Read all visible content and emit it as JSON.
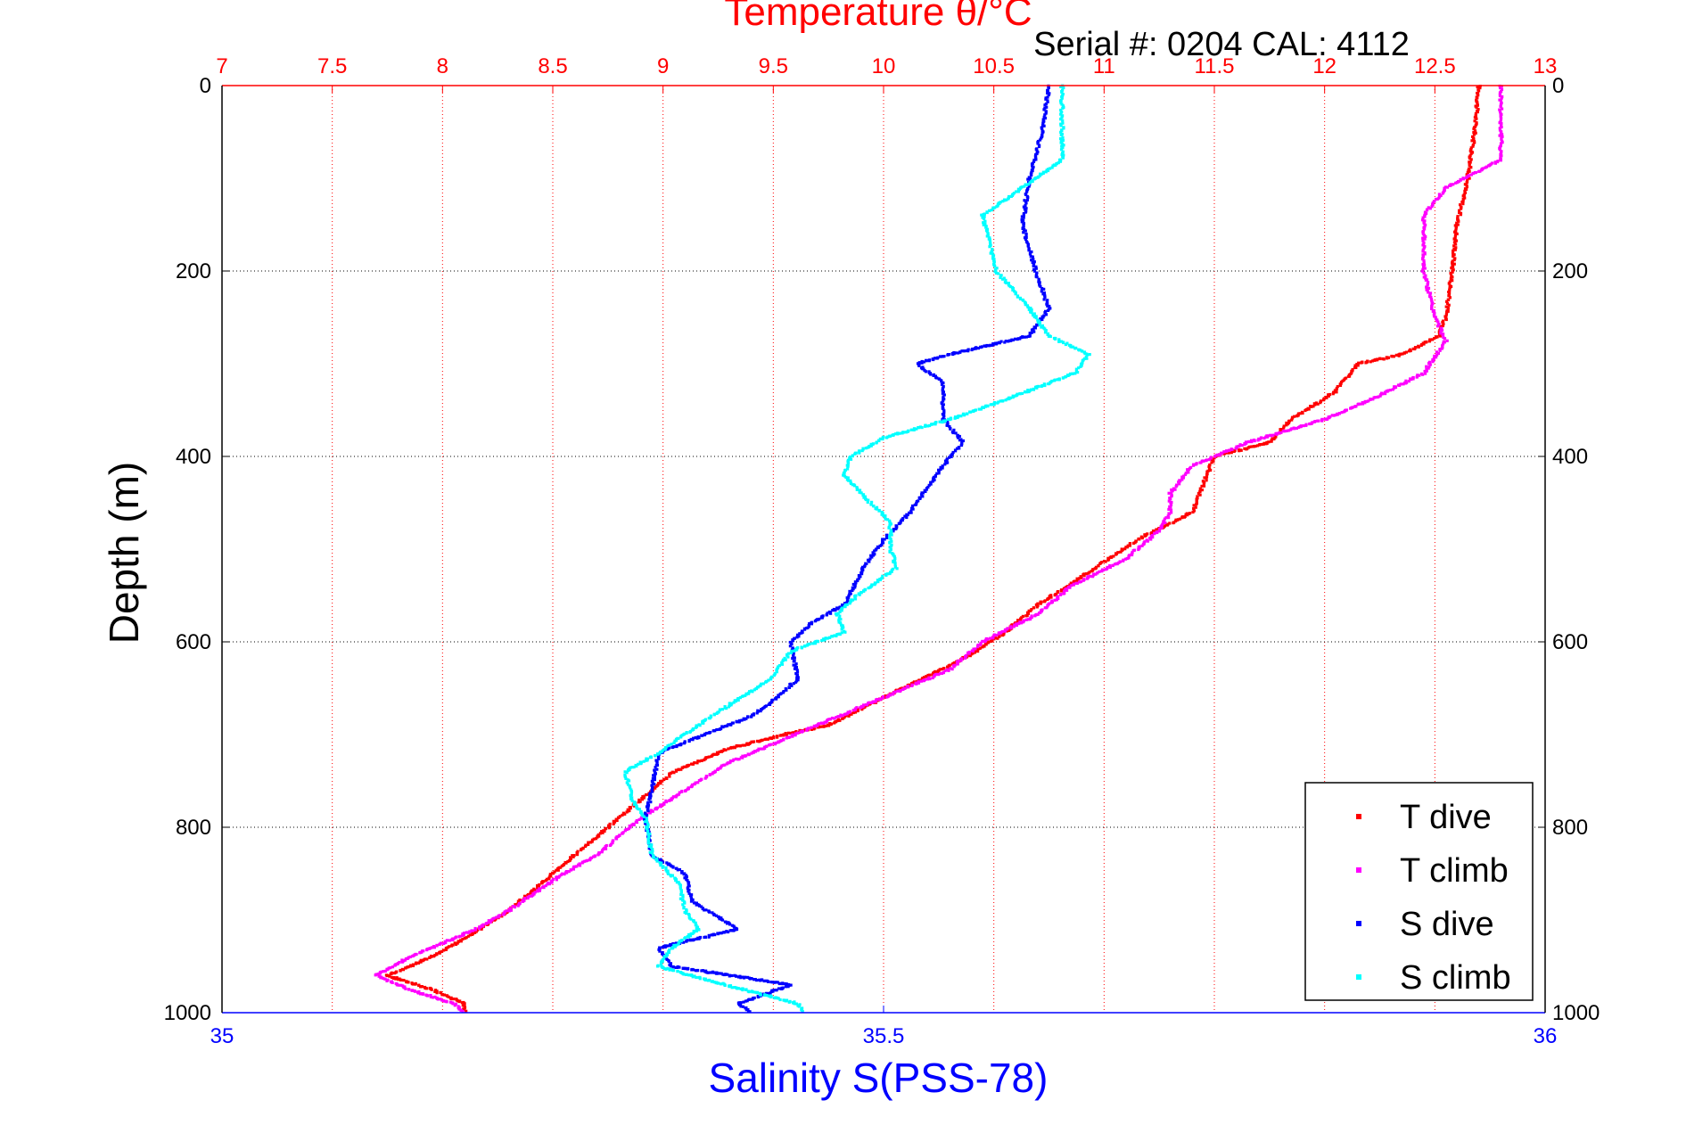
{
  "chart_data": {
    "type": "scatter",
    "title": "Temperature θ/°C",
    "subtitle": "Serial #: 0204  CAL: 4112",
    "xlabel_bottom": "Salinity S(PSS-78)",
    "ylabel": "Depth (m)",
    "temp_axis": {
      "range": [
        7,
        13
      ],
      "ticks": [
        "7",
        "7.5",
        "8",
        "8.5",
        "9",
        "9.5",
        "10",
        "10.5",
        "11",
        "11.5",
        "12",
        "12.5",
        "13"
      ],
      "color": "#ff0000"
    },
    "sal_axis": {
      "range": [
        35,
        36
      ],
      "ticks": [
        "35",
        "35.5",
        "36"
      ],
      "color": "#0000ff"
    },
    "depth_axis": {
      "range": [
        0,
        1000
      ],
      "reversed": true,
      "ticks": [
        "0",
        "200",
        "400",
        "600",
        "800",
        "1000"
      ]
    },
    "grid": true,
    "legend_position": "bottom-right",
    "series": [
      {
        "name": "T dive",
        "axis": "temp",
        "color": "#ff0000",
        "points": [
          [
            12.7,
            0
          ],
          [
            12.68,
            50
          ],
          [
            12.65,
            100
          ],
          [
            12.6,
            150
          ],
          [
            12.58,
            200
          ],
          [
            12.55,
            250
          ],
          [
            12.52,
            270
          ],
          [
            12.35,
            290
          ],
          [
            12.15,
            300
          ],
          [
            12.05,
            330
          ],
          [
            11.85,
            360
          ],
          [
            11.75,
            385
          ],
          [
            11.5,
            400
          ],
          [
            11.45,
            430
          ],
          [
            11.4,
            460
          ],
          [
            11.15,
            490
          ],
          [
            10.9,
            530
          ],
          [
            10.7,
            560
          ],
          [
            10.55,
            590
          ],
          [
            10.35,
            620
          ],
          [
            10.0,
            660
          ],
          [
            9.75,
            690
          ],
          [
            9.55,
            700
          ],
          [
            9.3,
            715
          ],
          [
            9.05,
            740
          ],
          [
            8.85,
            780
          ],
          [
            8.65,
            820
          ],
          [
            8.5,
            850
          ],
          [
            8.3,
            890
          ],
          [
            8.1,
            920
          ],
          [
            7.95,
            940
          ],
          [
            7.75,
            960
          ],
          [
            7.95,
            975
          ],
          [
            8.1,
            990
          ],
          [
            8.1,
            1000
          ]
        ]
      },
      {
        "name": "T climb",
        "axis": "temp",
        "color": "#ff00ff",
        "points": [
          [
            12.8,
            0
          ],
          [
            12.8,
            80
          ],
          [
            12.55,
            110
          ],
          [
            12.45,
            140
          ],
          [
            12.45,
            200
          ],
          [
            12.5,
            250
          ],
          [
            12.55,
            275
          ],
          [
            12.45,
            310
          ],
          [
            12.2,
            340
          ],
          [
            12.0,
            360
          ],
          [
            11.65,
            385
          ],
          [
            11.4,
            410
          ],
          [
            11.3,
            440
          ],
          [
            11.3,
            460
          ],
          [
            11.25,
            480
          ],
          [
            11.1,
            510
          ],
          [
            10.85,
            540
          ],
          [
            10.7,
            570
          ],
          [
            10.45,
            600
          ],
          [
            10.3,
            630
          ],
          [
            10.1,
            650
          ],
          [
            9.8,
            680
          ],
          [
            9.6,
            700
          ],
          [
            9.3,
            730
          ],
          [
            9.1,
            760
          ],
          [
            8.9,
            790
          ],
          [
            8.7,
            830
          ],
          [
            8.55,
            850
          ],
          [
            8.3,
            890
          ],
          [
            8.15,
            910
          ],
          [
            7.85,
            940
          ],
          [
            7.7,
            960
          ],
          [
            7.85,
            975
          ],
          [
            8.05,
            990
          ],
          [
            8.1,
            1000
          ]
        ]
      },
      {
        "name": "S dive",
        "axis": "sal",
        "color": "#0000ff",
        "points": [
          [
            35.625,
            0
          ],
          [
            35.62,
            50
          ],
          [
            35.61,
            100
          ],
          [
            35.605,
            150
          ],
          [
            35.615,
            200
          ],
          [
            35.625,
            240
          ],
          [
            35.61,
            270
          ],
          [
            35.55,
            290
          ],
          [
            35.525,
            300
          ],
          [
            35.545,
            320
          ],
          [
            35.545,
            360
          ],
          [
            35.56,
            385
          ],
          [
            35.545,
            410
          ],
          [
            35.53,
            440
          ],
          [
            35.52,
            460
          ],
          [
            35.5,
            490
          ],
          [
            35.485,
            520
          ],
          [
            35.47,
            560
          ],
          [
            35.445,
            580
          ],
          [
            35.43,
            600
          ],
          [
            35.435,
            640
          ],
          [
            35.42,
            660
          ],
          [
            35.4,
            680
          ],
          [
            35.365,
            700
          ],
          [
            35.33,
            720
          ],
          [
            35.325,
            760
          ],
          [
            35.32,
            790
          ],
          [
            35.325,
            830
          ],
          [
            35.35,
            850
          ],
          [
            35.355,
            880
          ],
          [
            35.39,
            910
          ],
          [
            35.33,
            930
          ],
          [
            35.34,
            950
          ],
          [
            35.43,
            970
          ],
          [
            35.39,
            990
          ],
          [
            35.4,
            1000
          ]
        ]
      },
      {
        "name": "S climb",
        "axis": "sal",
        "color": "#00ffff",
        "points": [
          [
            35.635,
            0
          ],
          [
            35.635,
            80
          ],
          [
            35.595,
            120
          ],
          [
            35.575,
            140
          ],
          [
            35.585,
            200
          ],
          [
            35.61,
            240
          ],
          [
            35.625,
            270
          ],
          [
            35.655,
            290
          ],
          [
            35.645,
            310
          ],
          [
            35.59,
            340
          ],
          [
            35.55,
            360
          ],
          [
            35.5,
            380
          ],
          [
            35.475,
            400
          ],
          [
            35.47,
            420
          ],
          [
            35.49,
            450
          ],
          [
            35.505,
            470
          ],
          [
            35.505,
            500
          ],
          [
            35.51,
            520
          ],
          [
            35.48,
            550
          ],
          [
            35.465,
            570
          ],
          [
            35.47,
            590
          ],
          [
            35.43,
            610
          ],
          [
            35.415,
            640
          ],
          [
            35.37,
            680
          ],
          [
            35.33,
            720
          ],
          [
            35.305,
            740
          ],
          [
            35.31,
            770
          ],
          [
            35.32,
            790
          ],
          [
            35.325,
            830
          ],
          [
            35.345,
            860
          ],
          [
            35.35,
            890
          ],
          [
            35.36,
            910
          ],
          [
            35.34,
            930
          ],
          [
            35.33,
            950
          ],
          [
            35.38,
            970
          ],
          [
            35.435,
            990
          ],
          [
            35.44,
            1000
          ]
        ]
      }
    ]
  }
}
